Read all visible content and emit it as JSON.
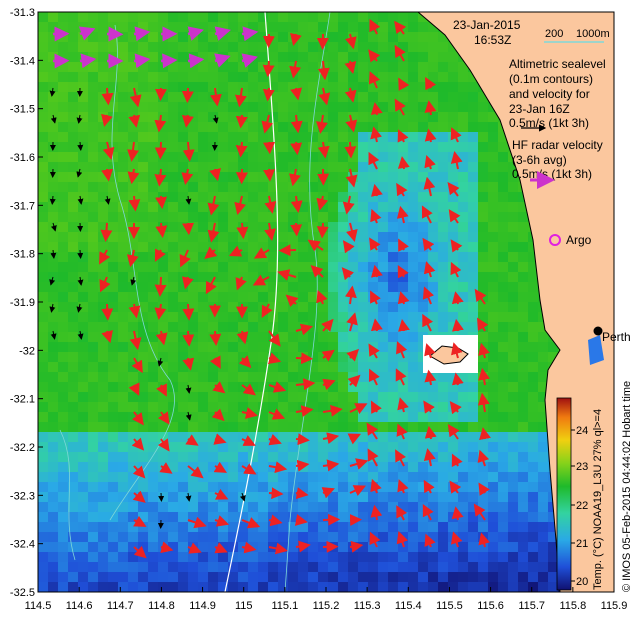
{
  "map": {
    "date_line": "23-Jan-2015",
    "time_line": "16:53Z",
    "isobath_labels": [
      "200",
      "1000m"
    ],
    "isobath_color": "#7fd8d8",
    "legend": {
      "altimetry_lines": [
        "Altimetric sealevel",
        "(0.1m contours)",
        "and velocity for",
        "23-Jan 16Z",
        "0.5m/s (1kt 3h)"
      ],
      "altimetry_arrow_color": "#000000",
      "hf_lines": [
        "HF radar velocity",
        "(3-6h avg)",
        "0.5m/s (1kt 3h)"
      ],
      "hf_arrow_color": "#cc33cc",
      "argo_label": "Argo",
      "argo_color": "#e020e0",
      "velocity_arrow_color": "#ee2222"
    },
    "place_label": "Perth",
    "credit": "© IMOS 05-Feb-2015 04:44:02 Hobart time",
    "colorbar_title": "Temp. (°C) NOAA19_L3U 27% ql>=4",
    "colorbar_ticks": [
      "24",
      "23",
      "22",
      "21",
      "20"
    ],
    "land_color": "#fbc79e",
    "x_ticks": [
      "114.5",
      "114.6",
      "114.7",
      "114.8",
      "114.9",
      "115",
      "115.1",
      "115.2",
      "115.3",
      "115.4",
      "115.5",
      "115.6",
      "115.7",
      "115.8",
      "115.9"
    ],
    "y_ticks": [
      "-31.3",
      "-31.4",
      "-31.5",
      "-31.6",
      "-31.7",
      "-31.8",
      "-31.9",
      "-32",
      "-32.1",
      "-32.2",
      "-32.3",
      "-32.4",
      "-32.5"
    ]
  }
}
